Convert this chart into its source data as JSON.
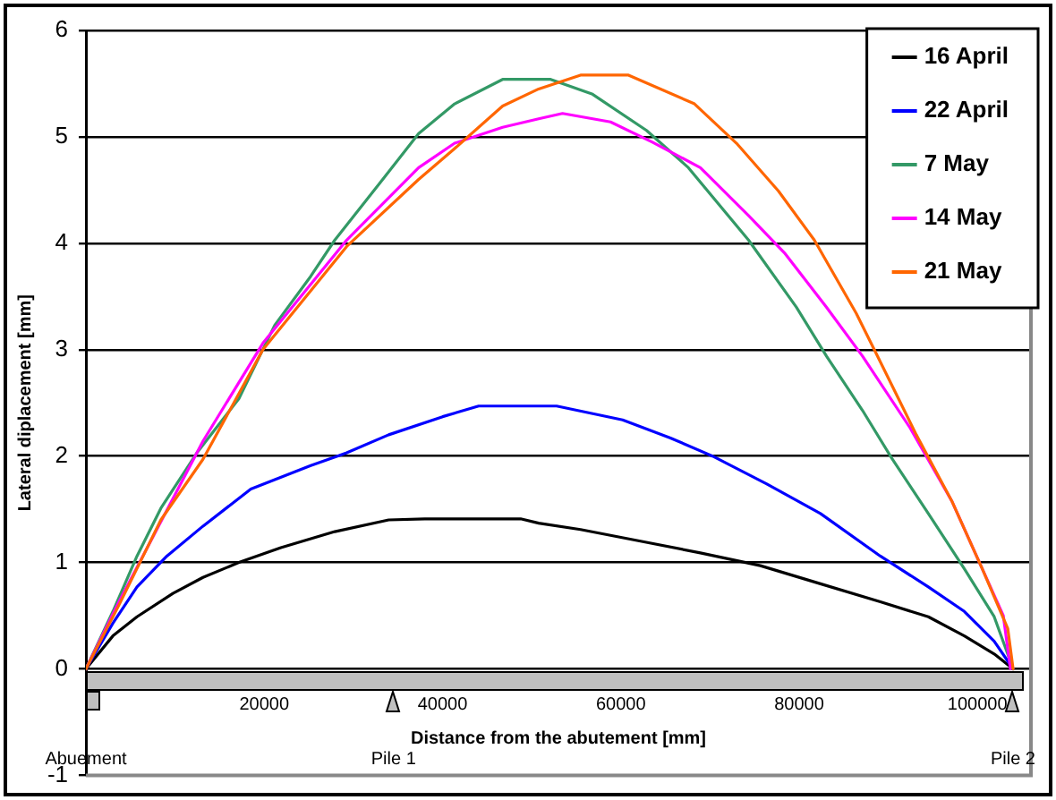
{
  "chart_data": {
    "type": "line",
    "xlabel": "Distance from the abutement [mm]",
    "ylabel": "Lateral diplacement [mm]",
    "xlim": [
      0,
      106000
    ],
    "xticks": [
      20000,
      40000,
      60000,
      80000,
      100000
    ],
    "ylim": [
      -1,
      6
    ],
    "yticks": [
      -1,
      0,
      1,
      2,
      3,
      4,
      5,
      6
    ],
    "grid": "y",
    "legend": "top right",
    "marker": "none",
    "line_style": "solid",
    "annotations": [
      "Abuement",
      "Pile 1",
      "Pile 2"
    ],
    "series": [
      {
        "name": "16 April",
        "color": "#000000",
        "x": [
          0,
          3030,
          5730,
          9760,
          13130,
          17160,
          21870,
          27920,
          33960,
          38000,
          48760,
          50780,
          55480,
          62210,
          68920,
          75650,
          82390,
          89110,
          94490,
          98530,
          101880,
          104000
        ],
        "values": [
          0,
          0.31,
          0.49,
          0.71,
          0.86,
          1.0,
          1.14,
          1.29,
          1.4,
          1.41,
          1.41,
          1.37,
          1.31,
          1.2,
          1.09,
          0.97,
          0.8,
          0.63,
          0.49,
          0.31,
          0.14,
          0
        ]
      },
      {
        "name": "22 April",
        "color": "#0000ff",
        "x": [
          0,
          3030,
          5730,
          9080,
          13110,
          18500,
          25220,
          29250,
          33960,
          40010,
          44050,
          50780,
          52800,
          60200,
          65570,
          70280,
          76330,
          82390,
          89110,
          94490,
          98530,
          101880,
          104000
        ],
        "values": [
          0,
          0.43,
          0.77,
          1.06,
          1.34,
          1.69,
          1.91,
          2.03,
          2.2,
          2.37,
          2.47,
          2.47,
          2.47,
          2.34,
          2.17,
          2.0,
          1.74,
          1.46,
          1.06,
          0.77,
          0.54,
          0.26,
          0
        ]
      },
      {
        "name": "7 May",
        "color": "#339966",
        "x": [
          0,
          3030,
          5730,
          8410,
          12450,
          17160,
          21180,
          25220,
          27920,
          33290,
          37320,
          41360,
          46740,
          52130,
          56830,
          62880,
          67580,
          74320,
          79680,
          83060,
          87100,
          90460,
          94490,
          98530,
          101880,
          104000
        ],
        "values": [
          0,
          0.54,
          1.06,
          1.51,
          2.03,
          2.54,
          3.23,
          3.69,
          4.03,
          4.6,
          5.03,
          5.31,
          5.54,
          5.54,
          5.4,
          5.06,
          4.71,
          4.03,
          3.4,
          2.94,
          2.43,
          1.97,
          1.46,
          0.94,
          0.49,
          0
        ]
      },
      {
        "name": "14 May",
        "color": "#ff00ff",
        "x": [
          0,
          3710,
          13130,
          19850,
          29250,
          37320,
          41360,
          46740,
          50780,
          53460,
          58840,
          63540,
          68920,
          74320,
          78350,
          83060,
          87100,
          92480,
          97170,
          100540,
          102900,
          103700
        ],
        "values": [
          0,
          0.63,
          2.14,
          3.06,
          4.03,
          4.71,
          4.94,
          5.09,
          5.17,
          5.22,
          5.14,
          4.95,
          4.71,
          4.26,
          3.91,
          3.4,
          2.94,
          2.26,
          1.57,
          0.94,
          0.5,
          0
        ]
      },
      {
        "name": "21 May",
        "color": "#ff6600",
        "x": [
          0,
          3710,
          8410,
          13130,
          19850,
          29250,
          37320,
          41360,
          46740,
          50780,
          55480,
          60860,
          68260,
          72970,
          77680,
          81700,
          86410,
          88430,
          93140,
          97170,
          100540,
          103400,
          104000
        ],
        "values": [
          0,
          0.6,
          1.4,
          1.97,
          3.0,
          3.97,
          4.6,
          4.89,
          5.29,
          5.45,
          5.58,
          5.58,
          5.31,
          4.94,
          4.49,
          4.03,
          3.34,
          3.0,
          2.2,
          1.57,
          0.94,
          0.38,
          0
        ]
      }
    ]
  }
}
